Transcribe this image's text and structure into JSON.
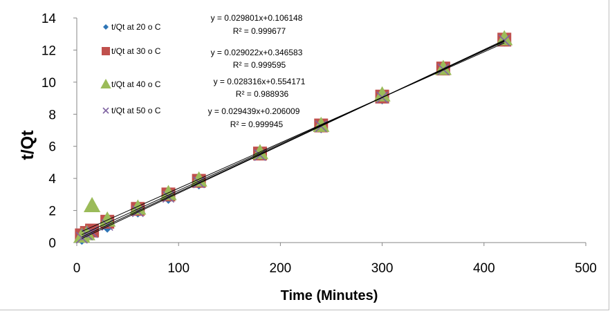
{
  "chart_data": {
    "type": "scatter",
    "title": "",
    "xlabel": "Time (Minutes)",
    "ylabel": "t/Qt",
    "xlim": [
      0,
      500
    ],
    "ylim": [
      0,
      14
    ],
    "xticks": [
      0,
      100,
      200,
      300,
      400,
      500
    ],
    "yticks": [
      0,
      2,
      4,
      6,
      8,
      10,
      12,
      14
    ],
    "grid": false,
    "legend_position": "top-left",
    "x": [
      5,
      10,
      15,
      30,
      60,
      90,
      120,
      180,
      240,
      300,
      360,
      420
    ],
    "series": [
      {
        "name": "t/Qt  at 20 o C",
        "marker": "diamond",
        "color": "#2e75b6",
        "values": [
          0.25,
          0.45,
          0.6,
          1.0,
          1.95,
          2.8,
          3.7,
          5.5,
          7.2,
          9.0,
          10.8,
          12.6
        ],
        "trendline": {
          "equation": "y = 0.029801x+0.106148",
          "r2": "R² = 0.999677"
        }
      },
      {
        "name": "t/Qt   at 30 o C",
        "marker": "square",
        "color": "#c0504d",
        "values": [
          0.45,
          0.6,
          0.75,
          1.3,
          2.1,
          3.0,
          3.85,
          5.55,
          7.3,
          9.1,
          10.85,
          12.65
        ],
        "trendline": {
          "equation": "y = 0.029022x+0.346583",
          "r2": "R² = 0.999595"
        }
      },
      {
        "name": "t/Qt  at 40 o C",
        "marker": "triangle",
        "color": "#9bbb59",
        "values": [
          0.4,
          0.55,
          2.3,
          1.4,
          2.15,
          3.05,
          3.9,
          5.6,
          7.3,
          9.2,
          10.85,
          12.7
        ],
        "trendline": {
          "equation": "y = 0.028316x+0.554171",
          "r2": "R² = 0.988936"
        }
      },
      {
        "name": "t/Qt   at 50 o C",
        "marker": "x",
        "color": "#8064a2",
        "values": [
          0.3,
          0.5,
          0.65,
          1.1,
          1.95,
          2.85,
          3.75,
          5.45,
          7.25,
          9.05,
          10.8,
          12.6
        ],
        "trendline": {
          "equation": "y = 0.029439x+0.206009",
          "r2": "R² = 0.999945"
        }
      }
    ],
    "trend_coefficients": [
      {
        "slope": 0.029801,
        "intercept": 0.106148
      },
      {
        "slope": 0.029022,
        "intercept": 0.346583
      },
      {
        "slope": 0.028316,
        "intercept": 0.554171
      },
      {
        "slope": 0.029439,
        "intercept": 0.206009
      }
    ]
  }
}
